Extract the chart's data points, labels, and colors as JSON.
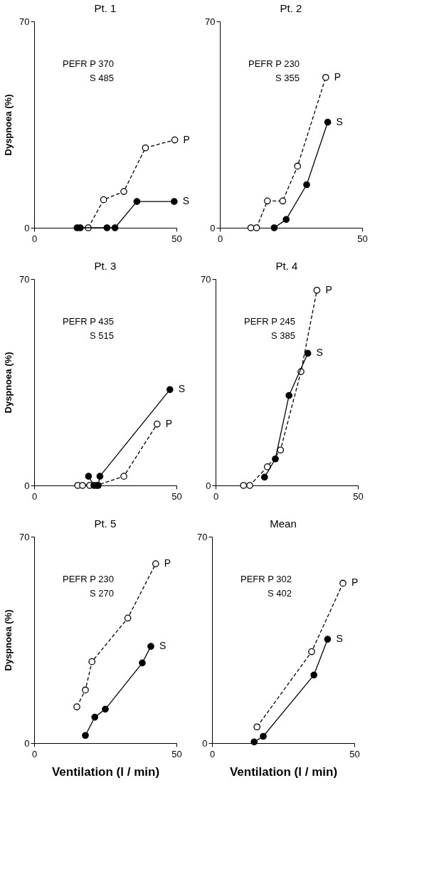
{
  "chart_data": [
    {
      "type": "line",
      "title": "Pt. 1",
      "ylabel": "Dyspnoea (%)",
      "xlim": [
        0,
        50
      ],
      "ylim": [
        0,
        70
      ],
      "xticks": [
        0,
        50
      ],
      "yticks": [
        0,
        70
      ],
      "grid": false,
      "legend": false,
      "marker": "circle",
      "annotations": [
        "PEFR P 370",
        "S 485"
      ],
      "series": [
        {
          "name": "P",
          "color": "#000000",
          "line_style": "dashed",
          "x": [
            19,
            24.4,
            31.5,
            39.1,
            49.4
          ],
          "values": [
            0,
            9.5,
            12.3,
            27.1,
            29.8
          ]
        },
        {
          "name": "S",
          "color": "#000000",
          "line_style": "solid",
          "x": [
            15.1,
            16.2,
            25.6,
            28.4,
            36.1,
            49.2
          ],
          "values": [
            0,
            0,
            0,
            0,
            8.9,
            8.9
          ]
        }
      ]
    },
    {
      "type": "line",
      "title": "Pt. 2",
      "xlim": [
        0,
        50
      ],
      "ylim": [
        0,
        70
      ],
      "xticks": [
        0,
        50
      ],
      "yticks": [
        0,
        70
      ],
      "grid": false,
      "legend": false,
      "marker": "circle",
      "annotations": [
        "PEFR P 230",
        "S 355"
      ],
      "series": [
        {
          "name": "P",
          "color": "#000000",
          "line_style": "dashed",
          "x": [
            10.9,
            12.9,
            16.7,
            22.1,
            27.3,
            37.2
          ],
          "values": [
            0,
            0,
            9.1,
            9.1,
            20.9,
            51
          ]
        },
        {
          "name": "S",
          "color": "#000000",
          "line_style": "solid",
          "x": [
            19.1,
            23.3,
            30.5,
            37.9
          ],
          "values": [
            0,
            2.8,
            14.6,
            35.8
          ]
        }
      ]
    },
    {
      "type": "line",
      "title": "Pt. 3",
      "ylabel": "Dyspnoea (%)",
      "xlim": [
        0,
        50
      ],
      "ylim": [
        0,
        70
      ],
      "xticks": [
        0,
        50
      ],
      "yticks": [
        0,
        70
      ],
      "grid": false,
      "legend": false,
      "marker": "circle",
      "annotations": [
        "PEFR P 435",
        "S 515"
      ],
      "series": [
        {
          "name": "P",
          "color": "#000000",
          "line_style": "dashed",
          "x": [
            15.3,
            17,
            19.5,
            21.9,
            31.5,
            43.2
          ],
          "values": [
            0,
            0,
            0,
            0,
            3.1,
            20.8
          ]
        },
        {
          "name": "S",
          "color": "#000000",
          "line_style": "solid",
          "x": [
            19.1,
            21,
            22.5,
            23.1,
            47.7
          ],
          "values": [
            3.1,
            0,
            0,
            3.1,
            32.5
          ]
        }
      ]
    },
    {
      "type": "line",
      "title": "Pt. 4",
      "xlim": [
        0,
        50
      ],
      "ylim": [
        0,
        70
      ],
      "xticks": [
        0,
        50
      ],
      "yticks": [
        0,
        70
      ],
      "grid": false,
      "legend": false,
      "marker": "circle",
      "annotations": [
        "PEFR P 245",
        "S 385"
      ],
      "series": [
        {
          "name": "P",
          "color": "#000000",
          "line_style": "dashed",
          "x": [
            9.8,
            12,
            18.2,
            22.8,
            30,
            35.6
          ],
          "values": [
            0,
            0,
            6.3,
            12,
            38.6,
            66.2
          ]
        },
        {
          "name": "S",
          "color": "#000000",
          "line_style": "solid",
          "x": [
            17.2,
            21,
            25.8,
            32.4
          ],
          "values": [
            2.8,
            9,
            30.5,
            44.8
          ]
        }
      ]
    },
    {
      "type": "line",
      "title": "Pt. 5",
      "ylabel": "Dyspnoea (%)",
      "xlabel": "Ventilation (l / min)",
      "xlim": [
        0,
        50
      ],
      "ylim": [
        0,
        70
      ],
      "xticks": [
        0,
        50
      ],
      "yticks": [
        0,
        70
      ],
      "grid": false,
      "legend": false,
      "marker": "circle",
      "annotations": [
        "PEFR P 230",
        "S 270"
      ],
      "series": [
        {
          "name": "P",
          "color": "#000000",
          "line_style": "dashed",
          "x": [
            15,
            18,
            20.3,
            32.9,
            42.7
          ],
          "values": [
            12.3,
            18,
            27.6,
            42.4,
            60.8
          ]
        },
        {
          "name": "S",
          "color": "#000000",
          "line_style": "solid",
          "x": [
            18,
            21.3,
            25,
            38,
            41
          ],
          "values": [
            2.6,
            8.8,
            11.5,
            27.2,
            32.8
          ]
        }
      ]
    },
    {
      "type": "line",
      "title": "Mean",
      "xlabel": "Ventilation (l / min)",
      "xlim": [
        0,
        50
      ],
      "ylim": [
        0,
        70
      ],
      "xticks": [
        0,
        50
      ],
      "yticks": [
        0,
        70
      ],
      "grid": false,
      "legend": false,
      "marker": "circle",
      "annotations": [
        "PEFR P 302",
        "S 402"
      ],
      "series": [
        {
          "name": "P",
          "color": "#000000",
          "line_style": "dashed",
          "x": [
            15.8,
            35,
            46
          ],
          "values": [
            5.5,
            31,
            54.2
          ]
        },
        {
          "name": "S",
          "color": "#000000",
          "line_style": "solid",
          "x": [
            14.8,
            18,
            35.8,
            40.6
          ],
          "values": [
            0.4,
            2.3,
            23.1,
            35.2
          ]
        }
      ]
    }
  ]
}
